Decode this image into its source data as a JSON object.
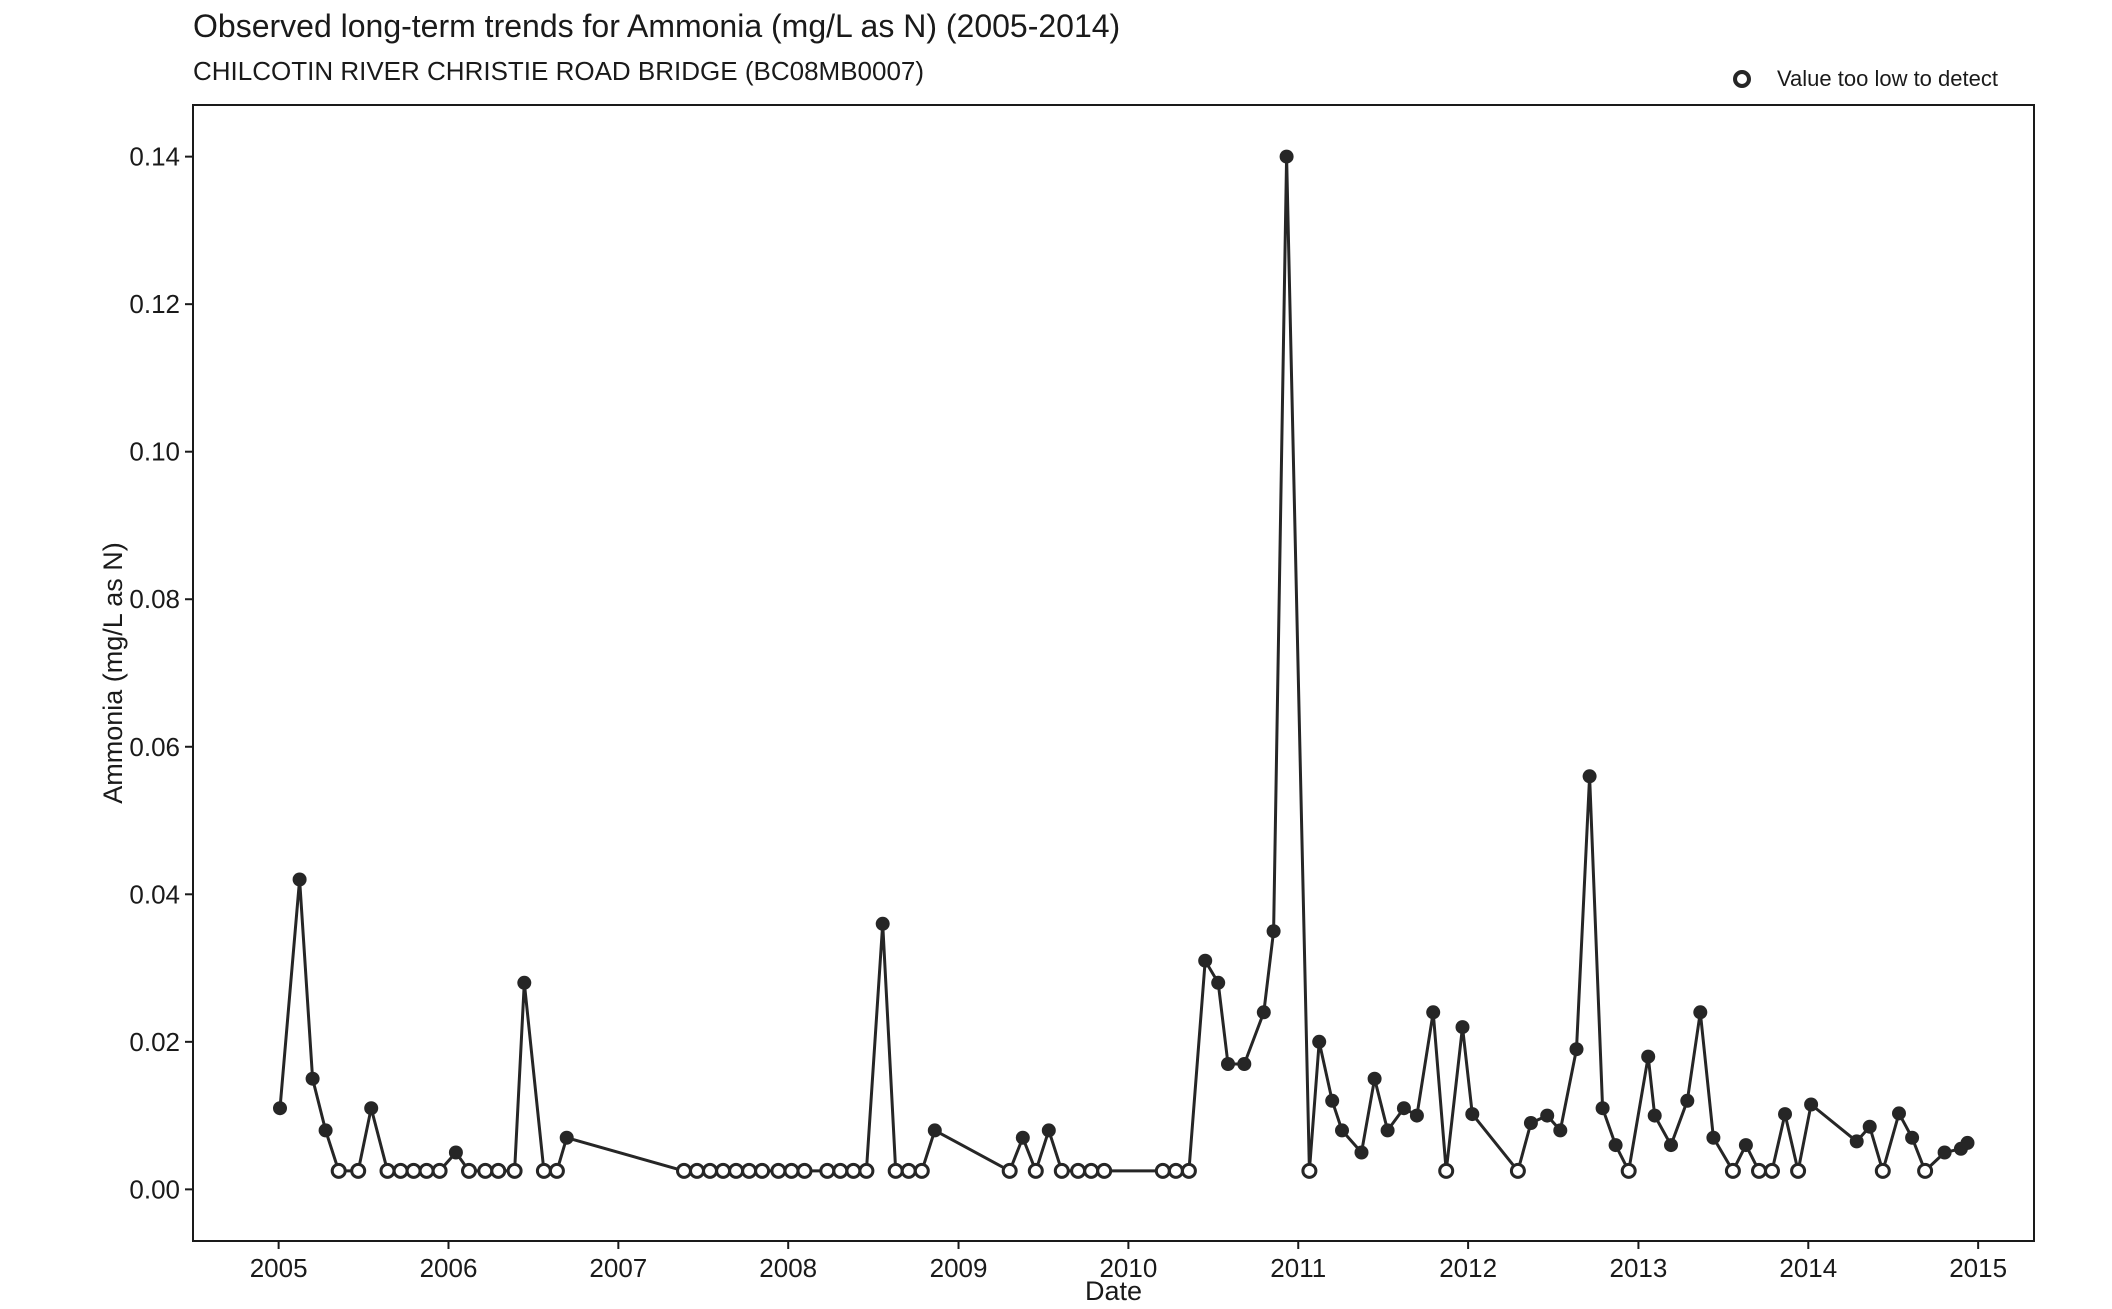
{
  "chart_data": {
    "type": "line",
    "title": "Observed long-term trends for Ammonia (mg/L as N) (2005-2014)",
    "subtitle": "CHILCOTIN RIVER CHRISTIE ROAD BRIDGE (BC08MB0007)",
    "xlabel": "Date",
    "ylabel": "Ammonia (mg/L as N)",
    "xlim": [
      "2004-07-01",
      "2015-05-01"
    ],
    "ylim": [
      -0.007,
      0.147
    ],
    "x_ticks": [
      "2005",
      "2006",
      "2007",
      "2008",
      "2009",
      "2010",
      "2011",
      "2012",
      "2013",
      "2014",
      "2015"
    ],
    "y_ticks": [
      "0.00",
      "0.02",
      "0.04",
      "0.06",
      "0.08",
      "0.10",
      "0.12",
      "0.14"
    ],
    "grid": false,
    "legend": {
      "position": "top-right",
      "label": "Value too low to detect",
      "marker": "open-circle"
    },
    "colors": {
      "line": "#262626",
      "marker": "#262626"
    },
    "series": [
      {
        "name": "Ammonia",
        "points": [
          {
            "x": "2005-01-04",
            "y": 0.011,
            "detect": true
          },
          {
            "x": "2005-02-15",
            "y": 0.042,
            "detect": true
          },
          {
            "x": "2005-03-15",
            "y": 0.015,
            "detect": true
          },
          {
            "x": "2005-04-12",
            "y": 0.008,
            "detect": true
          },
          {
            "x": "2005-05-10",
            "y": 0.0025,
            "detect": false
          },
          {
            "x": "2005-06-21",
            "y": 0.0025,
            "detect": false
          },
          {
            "x": "2005-07-19",
            "y": 0.011,
            "detect": true
          },
          {
            "x": "2005-08-23",
            "y": 0.0025,
            "detect": false
          },
          {
            "x": "2005-09-20",
            "y": 0.0025,
            "detect": false
          },
          {
            "x": "2005-10-18",
            "y": 0.0025,
            "detect": false
          },
          {
            "x": "2005-11-15",
            "y": 0.0025,
            "detect": false
          },
          {
            "x": "2005-12-13",
            "y": 0.0025,
            "detect": false
          },
          {
            "x": "2006-01-17",
            "y": 0.005,
            "detect": true
          },
          {
            "x": "2006-02-14",
            "y": 0.0025,
            "detect": false
          },
          {
            "x": "2006-03-21",
            "y": 0.0025,
            "detect": false
          },
          {
            "x": "2006-04-18",
            "y": 0.0025,
            "detect": false
          },
          {
            "x": "2006-05-23",
            "y": 0.0025,
            "detect": false
          },
          {
            "x": "2006-06-13",
            "y": 0.028,
            "detect": true
          },
          {
            "x": "2006-07-25",
            "y": 0.0025,
            "detect": false
          },
          {
            "x": "2006-08-22",
            "y": 0.0025,
            "detect": false
          },
          {
            "x": "2006-09-12",
            "y": 0.007,
            "detect": true
          },
          {
            "x": "2007-05-22",
            "y": 0.0025,
            "detect": false
          },
          {
            "x": "2007-06-19",
            "y": 0.0025,
            "detect": false
          },
          {
            "x": "2007-07-17",
            "y": 0.0025,
            "detect": false
          },
          {
            "x": "2007-08-14",
            "y": 0.0025,
            "detect": false
          },
          {
            "x": "2007-09-11",
            "y": 0.0025,
            "detect": false
          },
          {
            "x": "2007-10-09",
            "y": 0.0025,
            "detect": false
          },
          {
            "x": "2007-11-06",
            "y": 0.0025,
            "detect": false
          },
          {
            "x": "2007-12-11",
            "y": 0.0025,
            "detect": false
          },
          {
            "x": "2008-01-08",
            "y": 0.0025,
            "detect": false
          },
          {
            "x": "2008-02-05",
            "y": 0.0025,
            "detect": false
          },
          {
            "x": "2008-03-25",
            "y": 0.0025,
            "detect": false
          },
          {
            "x": "2008-04-22",
            "y": 0.0025,
            "detect": false
          },
          {
            "x": "2008-05-20",
            "y": 0.0025,
            "detect": false
          },
          {
            "x": "2008-06-17",
            "y": 0.0025,
            "detect": false
          },
          {
            "x": "2008-07-22",
            "y": 0.036,
            "detect": true
          },
          {
            "x": "2008-08-19",
            "y": 0.0025,
            "detect": false
          },
          {
            "x": "2008-09-16",
            "y": 0.0025,
            "detect": false
          },
          {
            "x": "2008-10-14",
            "y": 0.0025,
            "detect": false
          },
          {
            "x": "2008-11-11",
            "y": 0.008,
            "detect": true
          },
          {
            "x": "2009-04-21",
            "y": 0.0025,
            "detect": false
          },
          {
            "x": "2009-05-19",
            "y": 0.007,
            "detect": true
          },
          {
            "x": "2009-06-16",
            "y": 0.0025,
            "detect": false
          },
          {
            "x": "2009-07-14",
            "y": 0.008,
            "detect": true
          },
          {
            "x": "2009-08-11",
            "y": 0.0025,
            "detect": false
          },
          {
            "x": "2009-09-15",
            "y": 0.0025,
            "detect": false
          },
          {
            "x": "2009-10-13",
            "y": 0.0025,
            "detect": false
          },
          {
            "x": "2009-11-10",
            "y": 0.0025,
            "detect": false
          },
          {
            "x": "2010-03-16",
            "y": 0.0025,
            "detect": false
          },
          {
            "x": "2010-04-13",
            "y": 0.0025,
            "detect": false
          },
          {
            "x": "2010-05-11",
            "y": 0.0025,
            "detect": false
          },
          {
            "x": "2010-06-15",
            "y": 0.031,
            "detect": true
          },
          {
            "x": "2010-07-13",
            "y": 0.028,
            "detect": true
          },
          {
            "x": "2010-08-03",
            "y": 0.017,
            "detect": true
          },
          {
            "x": "2010-09-07",
            "y": 0.017,
            "detect": true
          },
          {
            "x": "2010-10-19",
            "y": 0.024,
            "detect": true
          },
          {
            "x": "2010-11-09",
            "y": 0.035,
            "detect": true
          },
          {
            "x": "2010-12-07",
            "y": 0.14,
            "detect": true
          },
          {
            "x": "2011-01-25",
            "y": 0.0025,
            "detect": false
          },
          {
            "x": "2011-02-15",
            "y": 0.02,
            "detect": true
          },
          {
            "x": "2011-03-15",
            "y": 0.012,
            "detect": true
          },
          {
            "x": "2011-04-05",
            "y": 0.008,
            "detect": true
          },
          {
            "x": "2011-05-17",
            "y": 0.005,
            "detect": true
          },
          {
            "x": "2011-06-14",
            "y": 0.015,
            "detect": true
          },
          {
            "x": "2011-07-12",
            "y": 0.008,
            "detect": true
          },
          {
            "x": "2011-08-16",
            "y": 0.011,
            "detect": true
          },
          {
            "x": "2011-09-13",
            "y": 0.01,
            "detect": true
          },
          {
            "x": "2011-10-18",
            "y": 0.024,
            "detect": true
          },
          {
            "x": "2011-11-15",
            "y": 0.0025,
            "detect": false
          },
          {
            "x": "2011-12-20",
            "y": 0.022,
            "detect": true
          },
          {
            "x": "2012-01-10",
            "y": 0.0102,
            "detect": true
          },
          {
            "x": "2012-04-17",
            "y": 0.0025,
            "detect": false
          },
          {
            "x": "2012-05-15",
            "y": 0.009,
            "detect": true
          },
          {
            "x": "2012-06-19",
            "y": 0.01,
            "detect": true
          },
          {
            "x": "2012-07-17",
            "y": 0.008,
            "detect": true
          },
          {
            "x": "2012-08-21",
            "y": 0.019,
            "detect": true
          },
          {
            "x": "2012-09-18",
            "y": 0.056,
            "detect": true
          },
          {
            "x": "2012-10-16",
            "y": 0.011,
            "detect": true
          },
          {
            "x": "2012-11-13",
            "y": 0.006,
            "detect": true
          },
          {
            "x": "2012-12-11",
            "y": 0.0025,
            "detect": false
          },
          {
            "x": "2013-01-22",
            "y": 0.018,
            "detect": true
          },
          {
            "x": "2013-02-05",
            "y": 0.01,
            "detect": true
          },
          {
            "x": "2013-03-12",
            "y": 0.006,
            "detect": true
          },
          {
            "x": "2013-04-16",
            "y": 0.012,
            "detect": true
          },
          {
            "x": "2013-05-14",
            "y": 0.024,
            "detect": true
          },
          {
            "x": "2013-06-11",
            "y": 0.007,
            "detect": true
          },
          {
            "x": "2013-07-23",
            "y": 0.0025,
            "detect": false
          },
          {
            "x": "2013-08-20",
            "y": 0.006,
            "detect": true
          },
          {
            "x": "2013-09-17",
            "y": 0.0025,
            "detect": false
          },
          {
            "x": "2013-10-15",
            "y": 0.0025,
            "detect": false
          },
          {
            "x": "2013-11-12",
            "y": 0.0102,
            "detect": true
          },
          {
            "x": "2013-12-10",
            "y": 0.0025,
            "detect": false
          },
          {
            "x": "2014-01-07",
            "y": 0.0115,
            "detect": true
          },
          {
            "x": "2014-04-15",
            "y": 0.0065,
            "detect": true
          },
          {
            "x": "2014-05-13",
            "y": 0.0085,
            "detect": true
          },
          {
            "x": "2014-06-10",
            "y": 0.0025,
            "detect": false
          },
          {
            "x": "2014-07-15",
            "y": 0.0103,
            "detect": true
          },
          {
            "x": "2014-08-12",
            "y": 0.007,
            "detect": true
          },
          {
            "x": "2014-09-09",
            "y": 0.0025,
            "detect": false
          },
          {
            "x": "2014-10-21",
            "y": 0.005,
            "detect": true
          },
          {
            "x": "2014-11-25",
            "y": 0.0055,
            "detect": true
          },
          {
            "x": "2014-12-09",
            "y": 0.0063,
            "detect": true
          }
        ]
      }
    ]
  }
}
